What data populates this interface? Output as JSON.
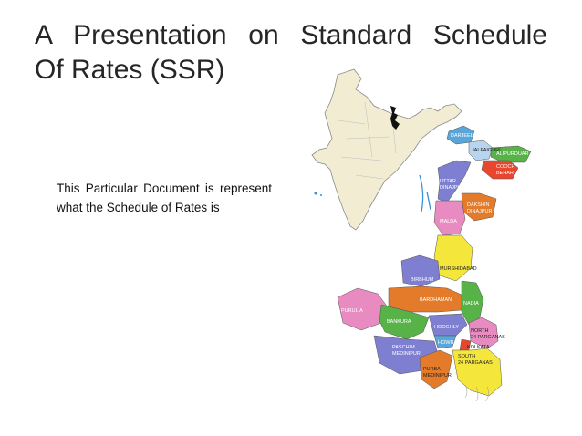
{
  "slide": {
    "title_line1": "A Presentation on Standard Schedule",
    "title_line2": "Of Rates (SSR)",
    "body": "This Particular Document is represent what the Schedule of Rates is"
  },
  "map": {
    "districts": [
      "DARJEELING",
      "JALPAIGURI",
      "ALIPURDUAR",
      "COOCH",
      "BEHAR",
      "UTTAR",
      "DINAJPUR",
      "DAKSHIN",
      "DINAJPUR",
      "MALDA",
      "MURSHIDABAD",
      "BIRBHUM",
      "BARDHAMAN",
      "NADIA",
      "PURULIA",
      "BANKURA",
      "HOOGHLY",
      "HOWRAH",
      "NORTH",
      "24 PARGANAS",
      "KOLKATA",
      "PASCHIM",
      "MEDINIPUR",
      "SOUTH",
      "24 PARGANAS",
      "PURBA",
      "MEDINIPUR"
    ]
  }
}
